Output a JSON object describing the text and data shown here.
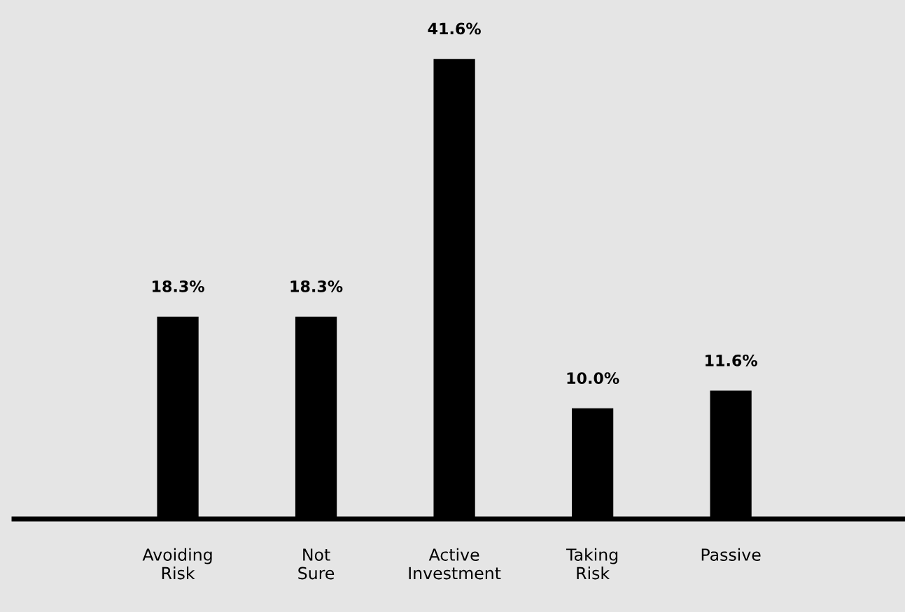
{
  "chart_data": {
    "type": "bar",
    "categories": [
      "Avoiding\nRisk",
      "Not\nSure",
      "Active\nInvestment",
      "Taking\nRisk",
      "Passive"
    ],
    "values": [
      18.3,
      18.3,
      41.6,
      10.0,
      11.6
    ],
    "value_labels": [
      "18.3%",
      "18.3%",
      "41.6%",
      "10.0%",
      "11.6%"
    ],
    "color": "#000000",
    "grid": false
  }
}
